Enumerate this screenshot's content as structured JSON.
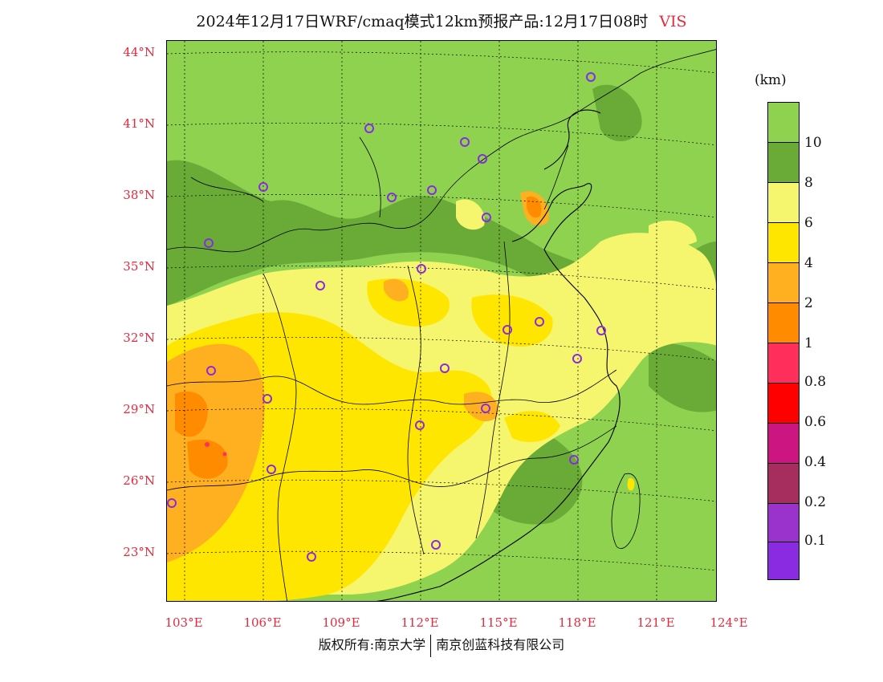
{
  "title": {
    "main": "2024年12月17日WRF/cmaq模式12km预报产品:12月17日08时",
    "variable": "VIS"
  },
  "lat_labels": [
    "44°N",
    "41°N",
    "38°N",
    "35°N",
    "32°N",
    "29°N",
    "26°N",
    "23°N"
  ],
  "lon_labels": [
    "103°E",
    "106°E",
    "109°E",
    "112°E",
    "115°E",
    "118°E",
    "121°E",
    "124°E"
  ],
  "colorbar": {
    "unit": "(km)",
    "labels": [
      "10",
      "8",
      "6",
      "4",
      "2",
      "1",
      "0.8",
      "0.6",
      "0.4",
      "0.2",
      "0.1"
    ],
    "colors": [
      "#8fd24f",
      "#6aab37",
      "#f5f56e",
      "#ffe600",
      "#ffb021",
      "#ff8c00",
      "#ff2e5a",
      "#ff0000",
      "#cc1580",
      "#a62e5f",
      "#9933cc",
      "#8a2be2"
    ]
  },
  "cities": 27,
  "footer": {
    "left": "版权所有:南京大学",
    "right": "南京创蓝科技有限公司"
  }
}
